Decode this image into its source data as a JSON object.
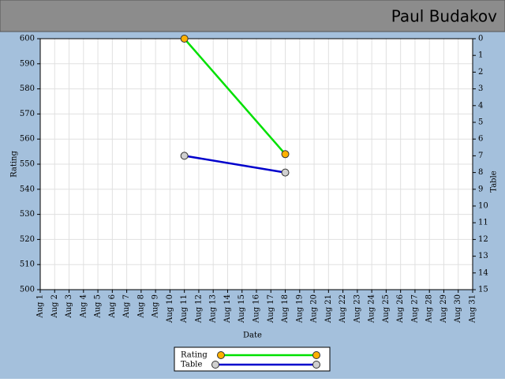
{
  "chart_data": {
    "type": "line",
    "title": "Paul Budakov",
    "x_label": "Date",
    "y_label": "Rating",
    "y2_label": "Table",
    "categories": [
      "Aug 1",
      "Aug 2",
      "Aug 3",
      "Aug 4",
      "Aug 5",
      "Aug 6",
      "Aug 7",
      "Aug 8",
      "Aug 9",
      "Aug 10",
      "Aug 11",
      "Aug 12",
      "Aug 13",
      "Aug 14",
      "Aug 15",
      "Aug 16",
      "Aug 17",
      "Aug 18",
      "Aug 19",
      "Aug 20",
      "Aug 21",
      "Aug 22",
      "Aug 23",
      "Aug 24",
      "Aug 25",
      "Aug 26",
      "Aug 27",
      "Aug 28",
      "Aug 29",
      "Aug 30",
      "Aug 31"
    ],
    "series": [
      {
        "name": "Rating",
        "color": "#00e000",
        "marker_color": "#ffb000",
        "x": [
          "Aug 11",
          "Aug 18"
        ],
        "values": [
          600,
          554
        ]
      },
      {
        "name": "Table",
        "color": "#0000cc",
        "marker_color": "#d0d0d0",
        "axis": "y2",
        "x": [
          "Aug 11",
          "Aug 18"
        ],
        "values": [
          7,
          8
        ]
      }
    ],
    "ylim": [
      500,
      600
    ],
    "yticks": [
      500,
      510,
      520,
      530,
      540,
      550,
      560,
      570,
      580,
      590,
      600
    ],
    "y2lim": [
      15,
      0
    ],
    "y2ticks": [
      0,
      1,
      2,
      3,
      4,
      5,
      6,
      7,
      8,
      9,
      10,
      11,
      12,
      13,
      14,
      15
    ],
    "grid": true
  }
}
